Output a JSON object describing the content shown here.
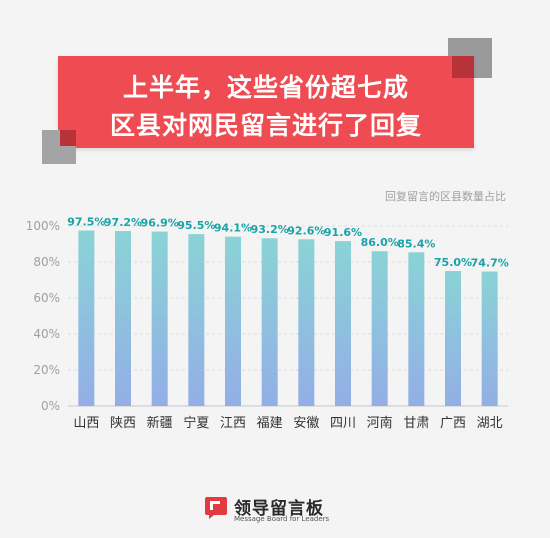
{
  "title": {
    "line1": "上半年，这些省份超七成",
    "line2": "区县对网民留言进行了回复"
  },
  "colors": {
    "title_bg": "#ee4b52",
    "label_color": "#1aa3a8",
    "bar_top": "#8ad3d6",
    "bar_bottom": "#93aee6"
  },
  "chart_data": {
    "type": "bar",
    "title": "回复留言的区县数量占比",
    "categories": [
      "山西",
      "陕西",
      "新疆",
      "宁夏",
      "江西",
      "福建",
      "安徽",
      "四川",
      "河南",
      "甘肃",
      "广西",
      "湖北"
    ],
    "values": [
      97.5,
      97.2,
      96.9,
      95.5,
      94.1,
      93.2,
      92.6,
      91.6,
      86.0,
      85.4,
      75.0,
      74.7
    ],
    "data_labels": [
      "97.5%",
      "97.2%",
      "96.9%",
      "95.5%",
      "94.1%",
      "93.2%",
      "92.6%",
      "91.6%",
      "86.0%",
      "85.4%",
      "75.0%",
      "74.7%"
    ],
    "ylim": [
      0,
      100
    ],
    "yticks": [
      "0%",
      "20%",
      "40%",
      "60%",
      "80%",
      "100%"
    ],
    "grid": true
  },
  "logo": {
    "name": "领导留言板",
    "english": "Message Board for Leaders",
    "icon": "speech-bubble-logo-icon"
  }
}
